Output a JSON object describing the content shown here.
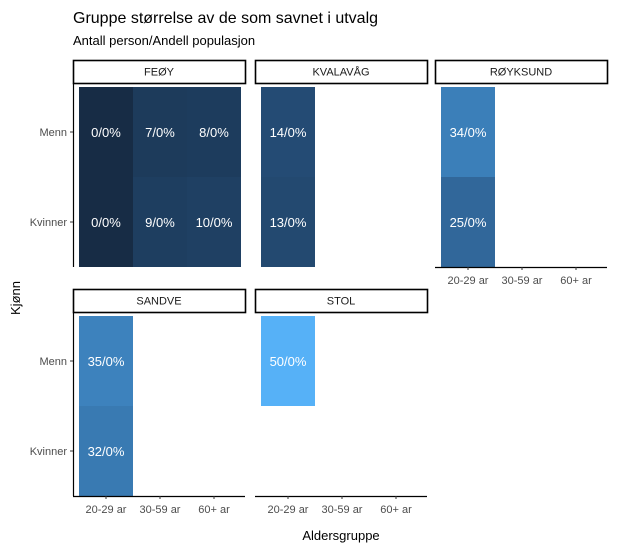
{
  "chart_data": {
    "type": "heatmap",
    "title": "Gruppe størrelse av de som savnet i utvalg",
    "subtitle": "Antall person/Andell populasjon",
    "xlabel": "Aldersgruppe",
    "ylabel": "Kjønn",
    "x_categories": [
      "20-29 ar",
      "30-59 ar",
      "60+ ar"
    ],
    "y_categories": [
      "Menn",
      "Kvinner"
    ],
    "panels": [
      {
        "name": "FEØY",
        "cells": [
          {
            "x": 0,
            "y": 0,
            "label": "0/0%",
            "color": "#172c45"
          },
          {
            "x": 1,
            "y": 0,
            "label": "7/0%",
            "color": "#1d3b5b"
          },
          {
            "x": 2,
            "y": 0,
            "label": "8/0%",
            "color": "#1d3c5d"
          },
          {
            "x": 0,
            "y": 1,
            "label": "0/0%",
            "color": "#172c45"
          },
          {
            "x": 1,
            "y": 1,
            "label": "9/0%",
            "color": "#1e3e60"
          },
          {
            "x": 2,
            "y": 1,
            "label": "10/0%",
            "color": "#1f4063"
          }
        ]
      },
      {
        "name": "KVALAVÅG",
        "cells": [
          {
            "x": 0,
            "y": 0,
            "label": "14/0%",
            "color": "#244b74"
          },
          {
            "x": 0,
            "y": 1,
            "label": "13/0%",
            "color": "#234970"
          }
        ]
      },
      {
        "name": "RØYKSUND",
        "cells": [
          {
            "x": 0,
            "y": 0,
            "label": "34/0%",
            "color": "#3b7fb9"
          },
          {
            "x": 0,
            "y": 1,
            "label": "25/0%",
            "color": "#31679a"
          }
        ]
      },
      {
        "name": "SANDVE",
        "cells": [
          {
            "x": 0,
            "y": 0,
            "label": "35/0%",
            "color": "#3d82bd"
          },
          {
            "x": 0,
            "y": 1,
            "label": "32/0%",
            "color": "#397ab2"
          }
        ]
      },
      {
        "name": "STOL",
        "cells": [
          {
            "x": 0,
            "y": 0,
            "label": "50/0%",
            "color": "#56b1f7"
          }
        ]
      }
    ]
  }
}
